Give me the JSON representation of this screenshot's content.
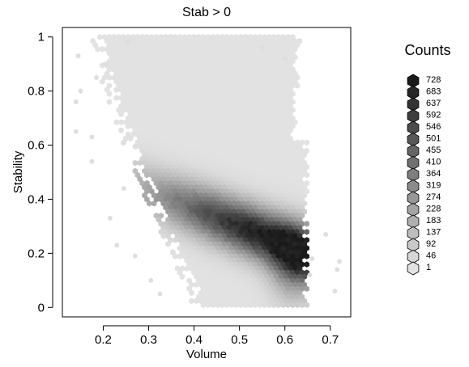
{
  "chart_data": {
    "type": "heatmap",
    "subtype": "hexbin",
    "title": "Stab > 0",
    "xlabel": "Volume",
    "ylabel": "Stability",
    "xlim": [
      0.11,
      0.745
    ],
    "ylim": [
      -0.035,
      1.035
    ],
    "xticks": [
      0.2,
      0.3,
      0.4,
      0.5,
      0.6,
      0.7
    ],
    "xtick_labels": [
      "0.2",
      "0.3",
      "0.4",
      "0.5",
      "0.6",
      "0.7"
    ],
    "yticks": [
      0,
      0.2,
      0.4,
      0.6,
      0.8,
      1
    ],
    "ytick_labels": [
      "0",
      "0.2",
      "0.4",
      "0.6",
      "0.8",
      "1"
    ],
    "grid": false,
    "legend": {
      "title": "Counts",
      "placement": "right",
      "values": [
        728,
        683,
        637,
        592,
        546,
        501,
        455,
        410,
        364,
        319,
        274,
        228,
        183,
        137,
        92,
        46,
        1
      ],
      "labels": [
        "728",
        "683",
        "637",
        "592",
        "546",
        "501",
        "455",
        "410",
        "364",
        "319",
        "274",
        "228",
        "183",
        "137",
        "92",
        "46",
        "1"
      ]
    },
    "colors": {
      "low": "#e2e2e2",
      "high": "#1a1a1a",
      "outline": "#000000"
    },
    "density_peak": {
      "x": 0.575,
      "y": 0.25,
      "max_count": 728
    },
    "outliers": [
      {
        "x": 0.14,
        "y": 0.76
      },
      {
        "x": 0.145,
        "y": 0.93
      },
      {
        "x": 0.15,
        "y": 0.8
      },
      {
        "x": 0.14,
        "y": 0.65
      },
      {
        "x": 0.175,
        "y": 0.63
      },
      {
        "x": 0.255,
        "y": 0.98
      },
      {
        "x": 0.205,
        "y": 0.9
      },
      {
        "x": 0.69,
        "y": 0.27
      },
      {
        "x": 0.72,
        "y": 0.17
      },
      {
        "x": 0.715,
        "y": 0.14
      },
      {
        "x": 0.71,
        "y": 0.06
      },
      {
        "x": 0.66,
        "y": 0.18
      },
      {
        "x": 0.655,
        "y": 0.12
      },
      {
        "x": 0.175,
        "y": 0.54
      },
      {
        "x": 0.245,
        "y": 0.44
      },
      {
        "x": 0.23,
        "y": 0.23
      },
      {
        "x": 0.27,
        "y": 0.19
      },
      {
        "x": 0.215,
        "y": 0.33
      },
      {
        "x": 0.305,
        "y": 0.1
      },
      {
        "x": 0.325,
        "y": 0.05
      },
      {
        "x": 0.185,
        "y": 0.85
      },
      {
        "x": 0.6,
        "y": 0.92
      },
      {
        "x": 0.55,
        "y": 0.96
      }
    ]
  }
}
